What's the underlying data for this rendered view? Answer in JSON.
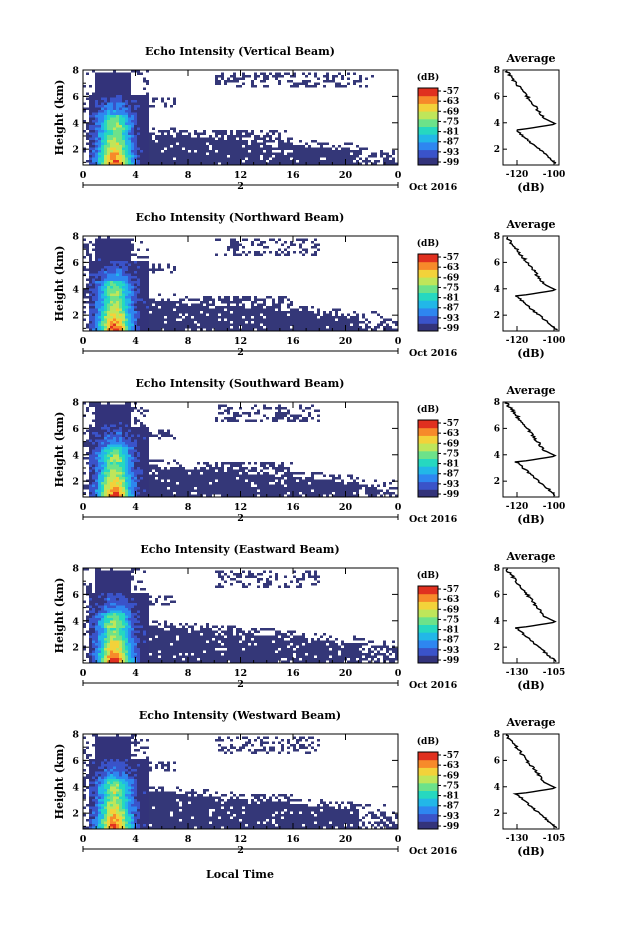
{
  "xlabel": "Local Time",
  "date_label": "Oct 2016",
  "day_label": "2",
  "panels": [
    {
      "title": "Echo Intensity (Vertical Beam)",
      "avg_title": "Average",
      "avg_xticks": [
        "-120",
        "-100"
      ],
      "avg_xunit": "(dB)"
    },
    {
      "title": "Echo Intensity (Northward Beam)",
      "avg_title": "Average",
      "avg_xticks": [
        "-120",
        "-100"
      ],
      "avg_xunit": "(dB)"
    },
    {
      "title": "Echo Intensity (Southward Beam)",
      "avg_title": "Average",
      "avg_xticks": [
        "-120",
        "-100"
      ],
      "avg_xunit": "(dB)"
    },
    {
      "title": "Echo Intensity (Eastward Beam)",
      "avg_title": "Average",
      "avg_xticks": [
        "-130",
        "-105"
      ],
      "avg_xunit": "(dB)"
    },
    {
      "title": "Echo Intensity (Westward Beam)",
      "avg_title": "Average",
      "avg_xticks": [
        "-130",
        "-105"
      ],
      "avg_xunit": "(dB)"
    }
  ],
  "chart_data": {
    "type": "heatmap",
    "ylabel": "Height (km)",
    "xticks": [
      "0",
      "4",
      "8",
      "12",
      "16",
      "20",
      "0"
    ],
    "yticks": [
      "2",
      "4",
      "6",
      "8"
    ],
    "colorbar_unit": "(dB)",
    "colorbar_ticks": [
      "-57",
      "-63",
      "-69",
      "-75",
      "-81",
      "-87",
      "-93",
      "-99"
    ],
    "colormap": [
      "#33337a",
      "#3a53c9",
      "#2e86f0",
      "#22b7e8",
      "#26d8c0",
      "#6ce28a",
      "#bfe65a",
      "#f3d23a",
      "#f78a2a",
      "#e0301f"
    ],
    "heatmap_bg": "#343778",
    "xlim": [
      0,
      24
    ],
    "ylim": [
      0.8,
      8
    ],
    "avg_ylim": [
      0.8,
      8
    ]
  }
}
